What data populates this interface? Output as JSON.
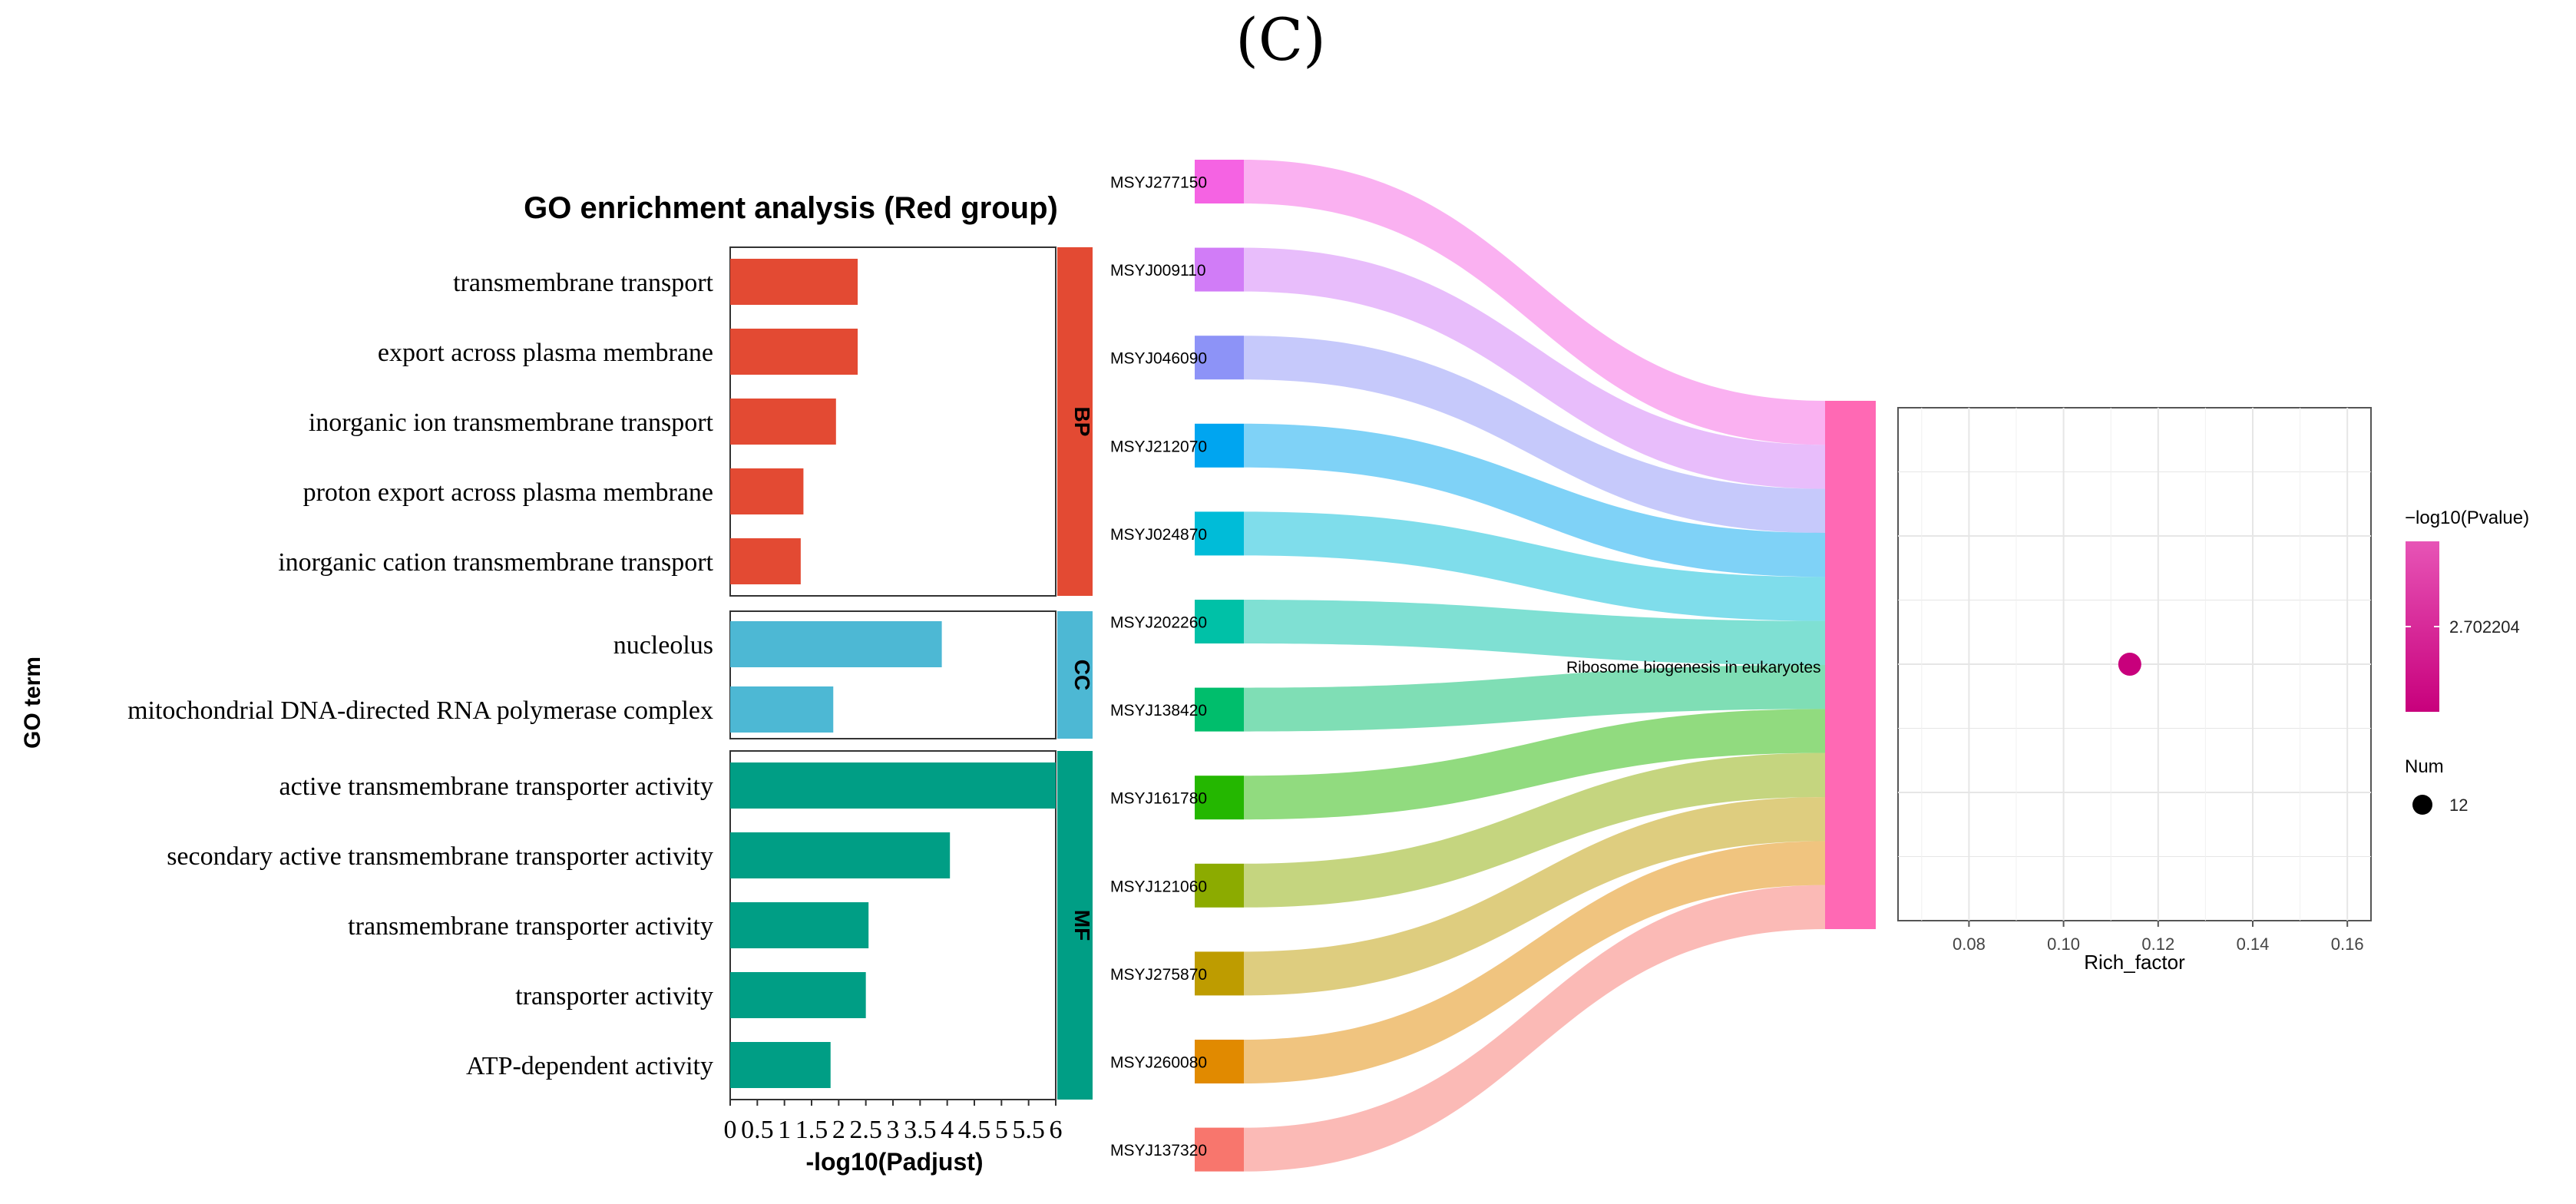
{
  "panel_label": "(C)",
  "chart_data": [
    {
      "type": "bar",
      "title": "GO enrichment analysis (Red group)",
      "xlabel": "-log10(Padjust)",
      "ylabel": "GO term",
      "xticks": [
        "0",
        "0.5",
        "1",
        "1.5",
        "2",
        "2.5",
        "3",
        "3.5",
        "4",
        "4.5",
        "5",
        "5.5",
        "6"
      ],
      "xlim": [
        0,
        6
      ],
      "groups": [
        {
          "name": "BP",
          "color": "#E34A33",
          "terms": [
            {
              "term": "transmembrane transport",
              "value": 2.35
            },
            {
              "term": "export across plasma membrane",
              "value": 2.35
            },
            {
              "term": "inorganic ion transmembrane transport",
              "value": 1.95
            },
            {
              "term": "proton export across plasma membrane",
              "value": 1.35
            },
            {
              "term": "inorganic cation transmembrane transport",
              "value": 1.3
            }
          ]
        },
        {
          "name": "CC",
          "color": "#4DB8D4",
          "terms": [
            {
              "term": "nucleolus",
              "value": 3.9
            },
            {
              "term": "mitochondrial DNA-directed RNA polymerase complex",
              "value": 1.9
            }
          ]
        },
        {
          "name": "MF",
          "color": "#009E85",
          "terms": [
            {
              "term": "active transmembrane transporter activity",
              "value": 6.0
            },
            {
              "term": "secondary active transmembrane transporter activity",
              "value": 4.05
            },
            {
              "term": "transmembrane transporter activity",
              "value": 2.55
            },
            {
              "term": "transporter activity",
              "value": 2.5
            },
            {
              "term": "ATP-dependent activity",
              "value": 1.85
            }
          ]
        }
      ]
    },
    {
      "type": "sankey",
      "pathway": "Ribosome biogenesis in eukaryotes",
      "pathway_color": "#FF69B4",
      "genes": [
        {
          "id": "MSYJ277150",
          "color": "#F563E3"
        },
        {
          "id": "MSYJ009110",
          "color": "#D17CF7"
        },
        {
          "id": "MSYJ046090",
          "color": "#8D93F7"
        },
        {
          "id": "MSYJ212070",
          "color": "#00A5F0"
        },
        {
          "id": "MSYJ024870",
          "color": "#00BCD8"
        },
        {
          "id": "MSYJ202260",
          "color": "#00C1A7"
        },
        {
          "id": "MSYJ138420",
          "color": "#00BE6C"
        },
        {
          "id": "MSYJ161780",
          "color": "#24B700"
        },
        {
          "id": "MSYJ121060",
          "color": "#8CAB00"
        },
        {
          "id": "MSYJ275870",
          "color": "#BE9C00"
        },
        {
          "id": "MSYJ260080",
          "color": "#E18A00"
        },
        {
          "id": "MSYJ137320",
          "color": "#F8766D"
        }
      ]
    },
    {
      "type": "scatter",
      "xlabel": "Rich_factor",
      "xticks": [
        "0.08",
        "0.10",
        "0.12",
        "0.14",
        "0.16"
      ],
      "xlim": [
        0.065,
        0.165
      ],
      "points": [
        {
          "x": 0.114,
          "term": "Ribosome biogenesis in eukaryotes",
          "neg_log10_p": 2.702204,
          "num": 12
        }
      ],
      "color_legend": {
        "title": "−log10(Pvalue)",
        "value": "2.702204",
        "color_low": "#E754B6",
        "color_high": "#C8007C"
      },
      "size_legend": {
        "title": "Num",
        "value": "12"
      }
    }
  ]
}
